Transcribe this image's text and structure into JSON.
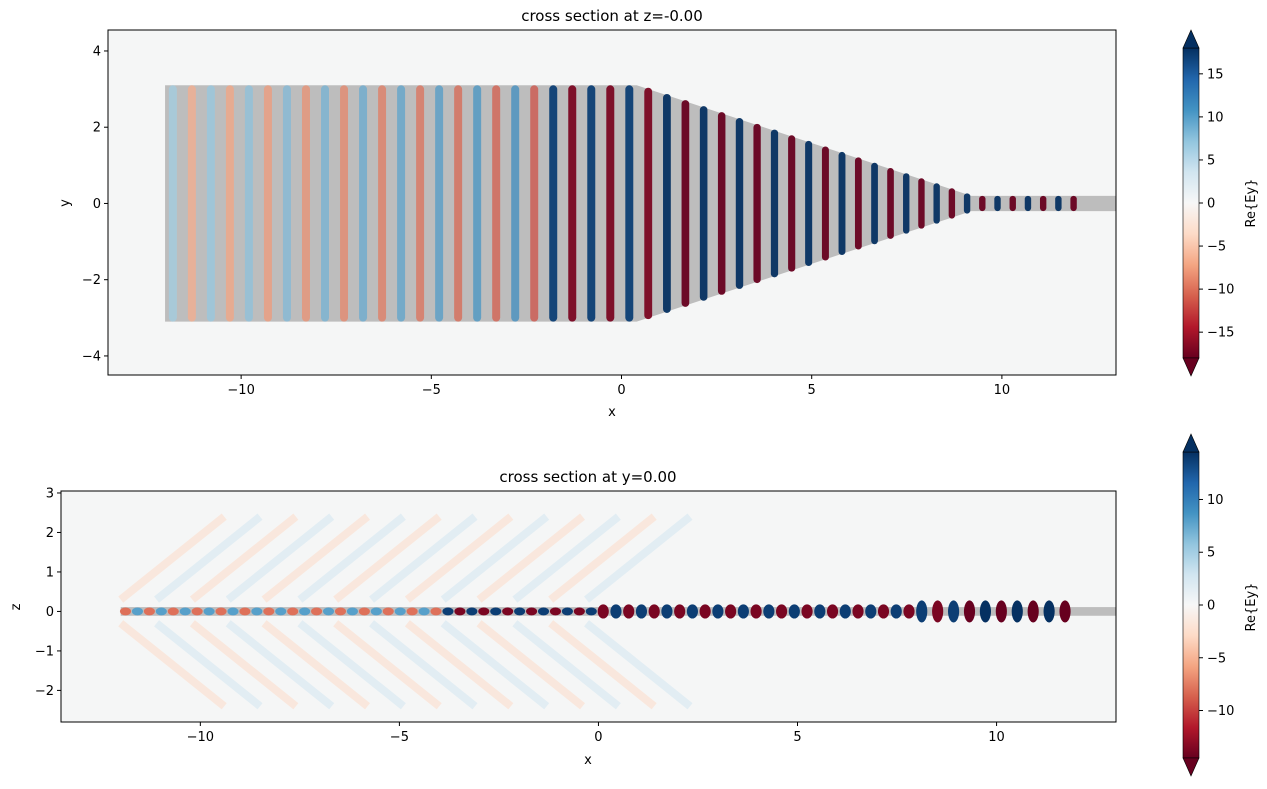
{
  "chart_data": [
    {
      "type": "heatmap",
      "title": "cross section at z=-0.00",
      "xlabel": "x",
      "ylabel": "y",
      "xlim": [
        -13.5,
        13.0
      ],
      "ylim": [
        -4.5,
        4.55
      ],
      "xticks": [
        -10,
        -5,
        0,
        5,
        10
      ],
      "xtick_labels": [
        "−10",
        "−5",
        "0",
        "5",
        "10"
      ],
      "yticks": [
        -4,
        -2,
        0,
        2,
        4
      ],
      "ytick_labels": [
        "−4",
        "−2",
        "0",
        "2",
        "4"
      ],
      "colorbar": {
        "label": "Re{Ey}",
        "range": [
          -18,
          18
        ],
        "ticks": [
          -15,
          -10,
          -5,
          0,
          5,
          10,
          15
        ],
        "tick_labels": [
          "−15",
          "−10",
          "−5",
          "0",
          "5",
          "10",
          "15"
        ],
        "extend": "both",
        "colormap": "RdBu"
      },
      "structure": {
        "taper_points": [
          [
            -12.0,
            -3.1
          ],
          [
            -12.0,
            3.1
          ],
          [
            0.4,
            3.1
          ],
          [
            9.2,
            0.2
          ],
          [
            13.0,
            0.2
          ],
          [
            13.0,
            -0.2
          ],
          [
            9.2,
            -0.2
          ],
          [
            0.4,
            -3.1
          ]
        ]
      }
    },
    {
      "type": "heatmap",
      "title": "cross section at y=0.00",
      "xlabel": "x",
      "ylabel": "z",
      "xlim": [
        -13.5,
        13.0
      ],
      "ylim": [
        -2.8,
        3.05
      ],
      "xticks": [
        -10,
        -5,
        0,
        5,
        10
      ],
      "xtick_labels": [
        "−10",
        "−5",
        "0",
        "5",
        "10"
      ],
      "yticks": [
        -2,
        -1,
        0,
        1,
        2,
        3
      ],
      "ytick_labels": [
        "−2",
        "−1",
        "0",
        "1",
        "2",
        "3"
      ],
      "colorbar": {
        "label": "Re{Ey}",
        "range": [
          -14.5,
          14.5
        ],
        "ticks": [
          -10,
          -5,
          0,
          5,
          10
        ],
        "tick_labels": [
          "−10",
          "−5",
          "0",
          "5",
          "10"
        ],
        "extend": "both",
        "colormap": "RdBu"
      },
      "structure": {
        "slab_x": [
          -12.0,
          13.0
        ],
        "slab_z": [
          -0.11,
          0.11
        ]
      }
    }
  ]
}
